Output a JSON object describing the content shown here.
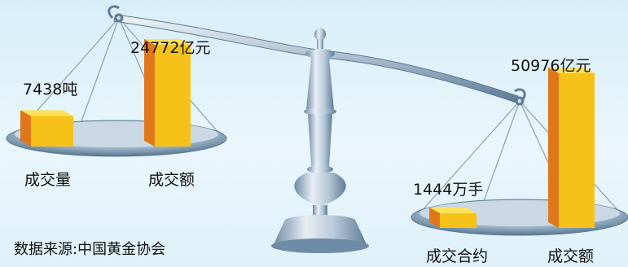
{
  "chart_data": {
    "type": "bar",
    "title": "",
    "panels": [
      {
        "side": "left",
        "categories": [
          "成交量",
          "成交额"
        ],
        "values": [
          7438,
          24772
        ],
        "value_labels": [
          "7438吨",
          "24772亿元"
        ]
      },
      {
        "side": "right",
        "categories": [
          "成交合约",
          "成交额"
        ],
        "values": [
          1444,
          50976
        ],
        "value_labels": [
          "1444万手",
          "50976亿元"
        ]
      }
    ]
  },
  "source_note": "数据来源:中国黄金协会",
  "colors": {
    "bar_front": "#f6c21a",
    "bar_side": "#e0771a",
    "bar_top": "#fce15a",
    "metal_light": "#e6edf5",
    "metal_dark": "#5d7c98",
    "rope": "#8aa1b4"
  }
}
